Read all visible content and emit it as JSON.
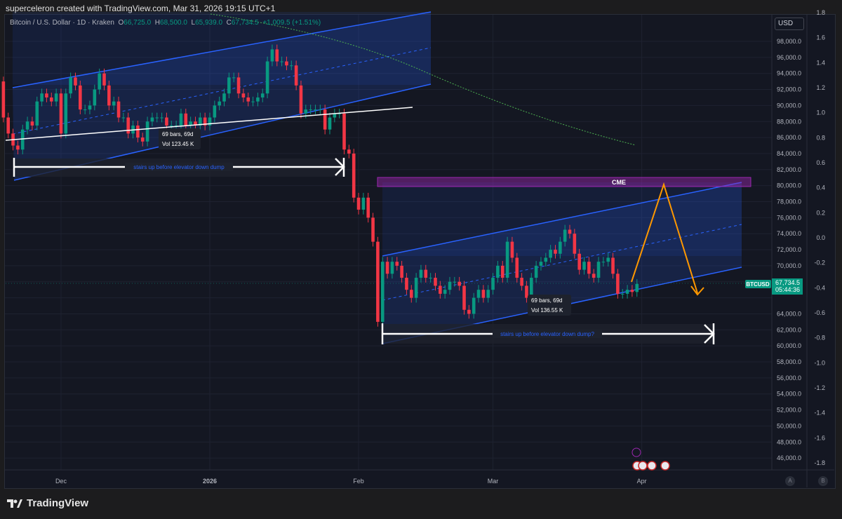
{
  "credit": "superceleron created with TradingView.com, Mar 31, 2026 19:15 UTC+1",
  "legend": {
    "symbol": "Bitcoin / U.S. Dollar · 1D · Kraken",
    "o_label": "O",
    "o": "66,725.0",
    "h_label": "H",
    "h": "68,500.0",
    "l_label": "L",
    "l": "65,939.0",
    "c_label": "C",
    "c": "67,734.5",
    "change": "+1,009.5 (+1.51%)"
  },
  "currency": "USD",
  "last_price": {
    "symbol": "BTCUSD",
    "price": "67,734.5",
    "countdown": "05:44:36"
  },
  "annotations": {
    "box1_line1": "69 bars, 69d",
    "box1_line2": "Vol 123.45 K",
    "arrow1_label": "stairs up before elevator down dump",
    "box2_line1": "69 bars, 69d",
    "box2_line2": "Vol 136.55 K",
    "arrow2_label": "stairs up before elevator down dump?",
    "cme_label": "CME"
  },
  "scale_buttons": [
    "A",
    "B"
  ],
  "footer_logo": "TradingView",
  "colors": {
    "up": "#089981",
    "down": "#f23645",
    "channel": "#2962ff",
    "cme": "#9c27b0",
    "projection": "#ff9800",
    "ma": "#4caf50",
    "background": "#141722"
  },
  "chart_data": {
    "type": "candlestick",
    "symbol": "BTCUSD",
    "interval": "1D",
    "start_date": "2025-11-19",
    "end_date": "2026-03-31",
    "first_open": 93000,
    "closes": [
      88500,
      86500,
      85000,
      84500,
      87000,
      88000,
      87500,
      90500,
      91500,
      91000,
      90500,
      91500,
      86500,
      91500,
      93500,
      92500,
      89500,
      89500,
      90000,
      92000,
      94000,
      92500,
      90000,
      90500,
      88500,
      88500,
      86500,
      87500,
      86000,
      85500,
      88000,
      88500,
      88500,
      88500,
      87500,
      87500,
      87500,
      89000,
      87500,
      88000,
      87500,
      88500,
      87500,
      88500,
      90000,
      90500,
      91500,
      93500,
      93500,
      91500,
      91000,
      90500,
      90500,
      91000,
      91500,
      95500,
      97000,
      95500,
      95500,
      95000,
      95000,
      92500,
      89000,
      89500,
      89500,
      89500,
      89500,
      87000,
      88500,
      89000,
      89000,
      84500,
      84000,
      78500,
      77000,
      78500,
      76000,
      73000,
      63000,
      70500,
      69000,
      70500,
      70000,
      68500,
      67000,
      66000,
      68500,
      69500,
      68500,
      68500,
      67500,
      66500,
      67000,
      68000,
      68000,
      67500,
      64500,
      64000,
      66000,
      67000,
      66000,
      67000,
      68500,
      70000,
      68500,
      73000,
      71000,
      68500,
      67500,
      66000,
      68500,
      70000,
      70500,
      71000,
      72000,
      71500,
      73000,
      74500,
      74000,
      71500,
      69500,
      70500,
      69000,
      68500,
      70500,
      70500,
      71000,
      69000,
      66500,
      66500,
      67000,
      66725,
      67734.5
    ],
    "price_axis": {
      "min": 46000,
      "max": 98000,
      "step": 2000
    },
    "secondary_axis": {
      "ticks": [
        "1.8",
        "1.6",
        "1.4",
        "1.2",
        "1.0",
        "0.8",
        "0.6",
        "0.4",
        "0.2",
        "0.0",
        "-0.2",
        "-0.4",
        "-0.6",
        "-0.8",
        "-1.0",
        "-1.2",
        "-1.4",
        "-1.6",
        "-1.8"
      ]
    },
    "time_axis": {
      "ticks": [
        {
          "label": "Dec",
          "date": "2025-12-01"
        },
        {
          "label": "2026",
          "date": "2026-01-01"
        },
        {
          "label": "Feb",
          "date": "2026-02-01"
        },
        {
          "label": "Mar",
          "date": "2026-03-01"
        },
        {
          "label": "Apr",
          "date": "2026-04-01"
        }
      ]
    },
    "grid": true
  }
}
